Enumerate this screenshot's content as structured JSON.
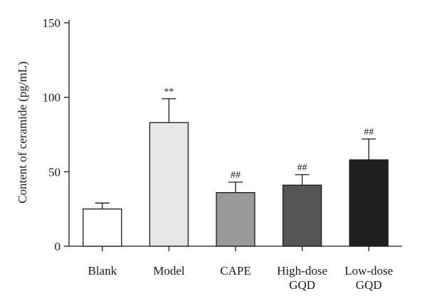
{
  "chart_data": {
    "type": "bar",
    "ylabel": "Content of ceramide (pg/mL)",
    "ylim": [
      0,
      150
    ],
    "yticks": [
      0,
      50,
      100,
      150
    ],
    "grid": false,
    "categories": [
      {
        "lines": [
          "Blank"
        ]
      },
      {
        "lines": [
          "Model"
        ]
      },
      {
        "lines": [
          "CAPE"
        ]
      },
      {
        "lines": [
          "High-dose",
          "GQD"
        ]
      },
      {
        "lines": [
          "Low-dose",
          "GQD"
        ]
      }
    ],
    "values": [
      25,
      83,
      36,
      41,
      58
    ],
    "errors": [
      4,
      16,
      7,
      7,
      14
    ],
    "significance": [
      "",
      "**",
      "##",
      "##",
      "##"
    ],
    "colors": [
      "#ffffff",
      "#e6e6e6",
      "#9a9a9a",
      "#555555",
      "#1f1f1f"
    ]
  }
}
